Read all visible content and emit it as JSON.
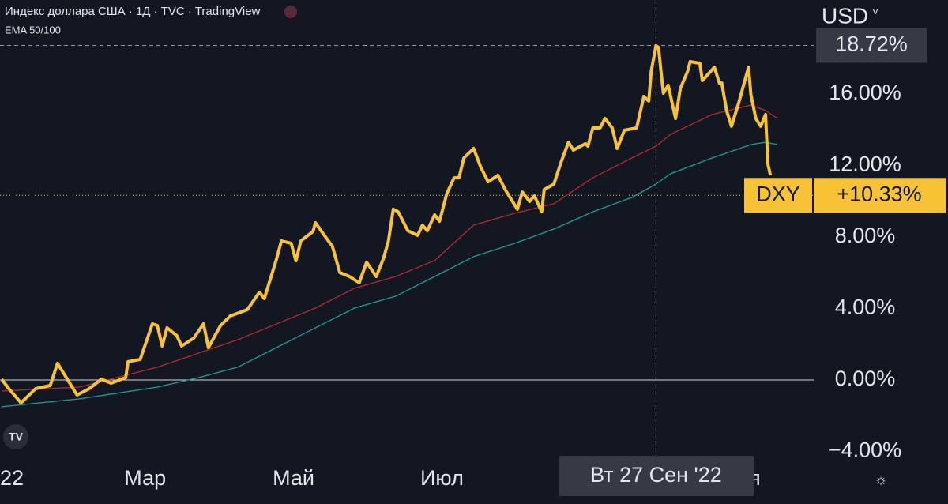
{
  "chart_data": {
    "type": "line",
    "title": "Индекс доллара США · 1Д · TVC · TradingView",
    "subtitle": "EMA 50/100",
    "currency": "USD",
    "xlim": [
      -0.65,
      333.8
    ],
    "ylim": [
      -4.29,
      21.26
    ],
    "xticks": [
      {
        "value": 0,
        "label": "22"
      },
      {
        "value": 59,
        "label": "Мар"
      },
      {
        "value": 120,
        "label": "Май"
      },
      {
        "value": 181,
        "label": "Июл"
      },
      {
        "value": 304,
        "label": "Ноя"
      }
    ],
    "yticks": [
      {
        "value": -4,
        "label": "−4.00%"
      },
      {
        "value": 0,
        "label": "0.00%"
      },
      {
        "value": 4,
        "label": "4.00%"
      },
      {
        "value": 8,
        "label": "8.00%"
      },
      {
        "value": 12,
        "label": "12.00%"
      },
      {
        "value": 16,
        "label": "16.00%"
      }
    ],
    "crosshair": {
      "x": 269,
      "value": 18.72,
      "label": "18.72%",
      "date": "Вт 27 Сен '22"
    },
    "last_value": {
      "symbol": "DXY",
      "value": 10.33,
      "label": "+10.33%"
    },
    "series": [
      {
        "name": "DXY",
        "color": "#f7c236",
        "x": [
          0,
          3,
          8,
          14,
          20,
          23,
          27,
          31,
          36,
          41,
          45,
          51,
          52,
          57,
          62,
          64,
          66,
          68,
          72,
          74,
          79,
          83,
          85,
          90,
          94,
          101,
          106,
          108,
          113,
          115,
          119,
          121,
          123,
          128,
          129,
          132,
          136,
          139,
          143,
          147,
          150,
          154,
          157,
          159,
          161,
          163,
          167,
          171,
          173,
          175,
          178,
          180,
          183,
          186,
          188,
          190,
          194,
          197,
          200,
          204,
          207,
          212,
          214,
          217,
          219,
          222,
          223,
          227,
          230,
          233,
          235,
          240,
          241,
          243,
          246,
          248,
          251,
          253,
          256,
          261,
          264,
          266,
          267,
          269,
          270,
          272,
          274,
          277,
          279,
          282,
          283,
          287,
          288,
          293,
          295,
          296,
          298,
          300,
          303,
          307,
          308,
          310,
          312,
          314,
          315,
          316
        ],
        "values": [
          0.04,
          -0.49,
          -1.28,
          -0.49,
          -0.31,
          0.93,
          0.04,
          -0.84,
          -0.49,
          0.04,
          -0.18,
          0.13,
          1.02,
          1.15,
          3.14,
          3.05,
          1.9,
          2.92,
          2.48,
          1.9,
          2.34,
          3.14,
          1.81,
          3.05,
          3.58,
          3.93,
          4.91,
          4.55,
          6.76,
          7.78,
          7.65,
          6.67,
          7.78,
          8.31,
          8.8,
          8.22,
          7.47,
          6.01,
          5.79,
          5.44,
          6.59,
          5.79,
          6.81,
          7.78,
          9.55,
          9.41,
          8.35,
          8.09,
          8.66,
          8.35,
          9.24,
          8.88,
          10.43,
          11.31,
          11.31,
          12.42,
          12.95,
          11.89,
          11.09,
          11.45,
          10.65,
          9.55,
          10.52,
          9.99,
          10.3,
          9.41,
          10.65,
          10.96,
          12.2,
          13.3,
          12.86,
          13.22,
          13.08,
          14.1,
          14.1,
          14.63,
          14.1,
          12.95,
          13.97,
          14.1,
          15.87,
          15.6,
          17.28,
          18.7,
          18.61,
          16.04,
          16.49,
          14.63,
          16.31,
          17.28,
          17.81,
          17.72,
          16.75,
          17.5,
          16.62,
          16.62,
          15.07,
          14.19,
          15.51,
          17.5,
          15.96,
          14.63,
          14.19,
          14.85,
          12.07,
          11.45
        ]
      },
      {
        "color": "#b52a34",
        "x": [
          0,
          32,
          64,
          97,
          129,
          145,
          162,
          178,
          194,
          211,
          227,
          243,
          259,
          269,
          275,
          292,
          308,
          314,
          319
        ],
        "values": [
          -0.62,
          -0.4,
          0.71,
          2.25,
          4.02,
          5.13,
          5.79,
          6.68,
          8.66,
          9.33,
          9.86,
          11.31,
          12.42,
          13.08,
          13.74,
          14.85,
          15.38,
          15.07,
          14.63
        ]
      },
      {
        "color": "#1f9c9c",
        "x": [
          0,
          32,
          64,
          81,
          97,
          113,
          129,
          145,
          162,
          178,
          194,
          211,
          227,
          243,
          259,
          269,
          275,
          292,
          308,
          314,
          319
        ],
        "values": [
          -1.5,
          -1.06,
          -0.4,
          0.13,
          0.71,
          1.81,
          2.92,
          4.02,
          4.69,
          5.79,
          6.9,
          7.65,
          8.44,
          9.41,
          10.21,
          10.96,
          11.54,
          12.42,
          13.17,
          13.3,
          13.17
        ]
      }
    ]
  }
}
